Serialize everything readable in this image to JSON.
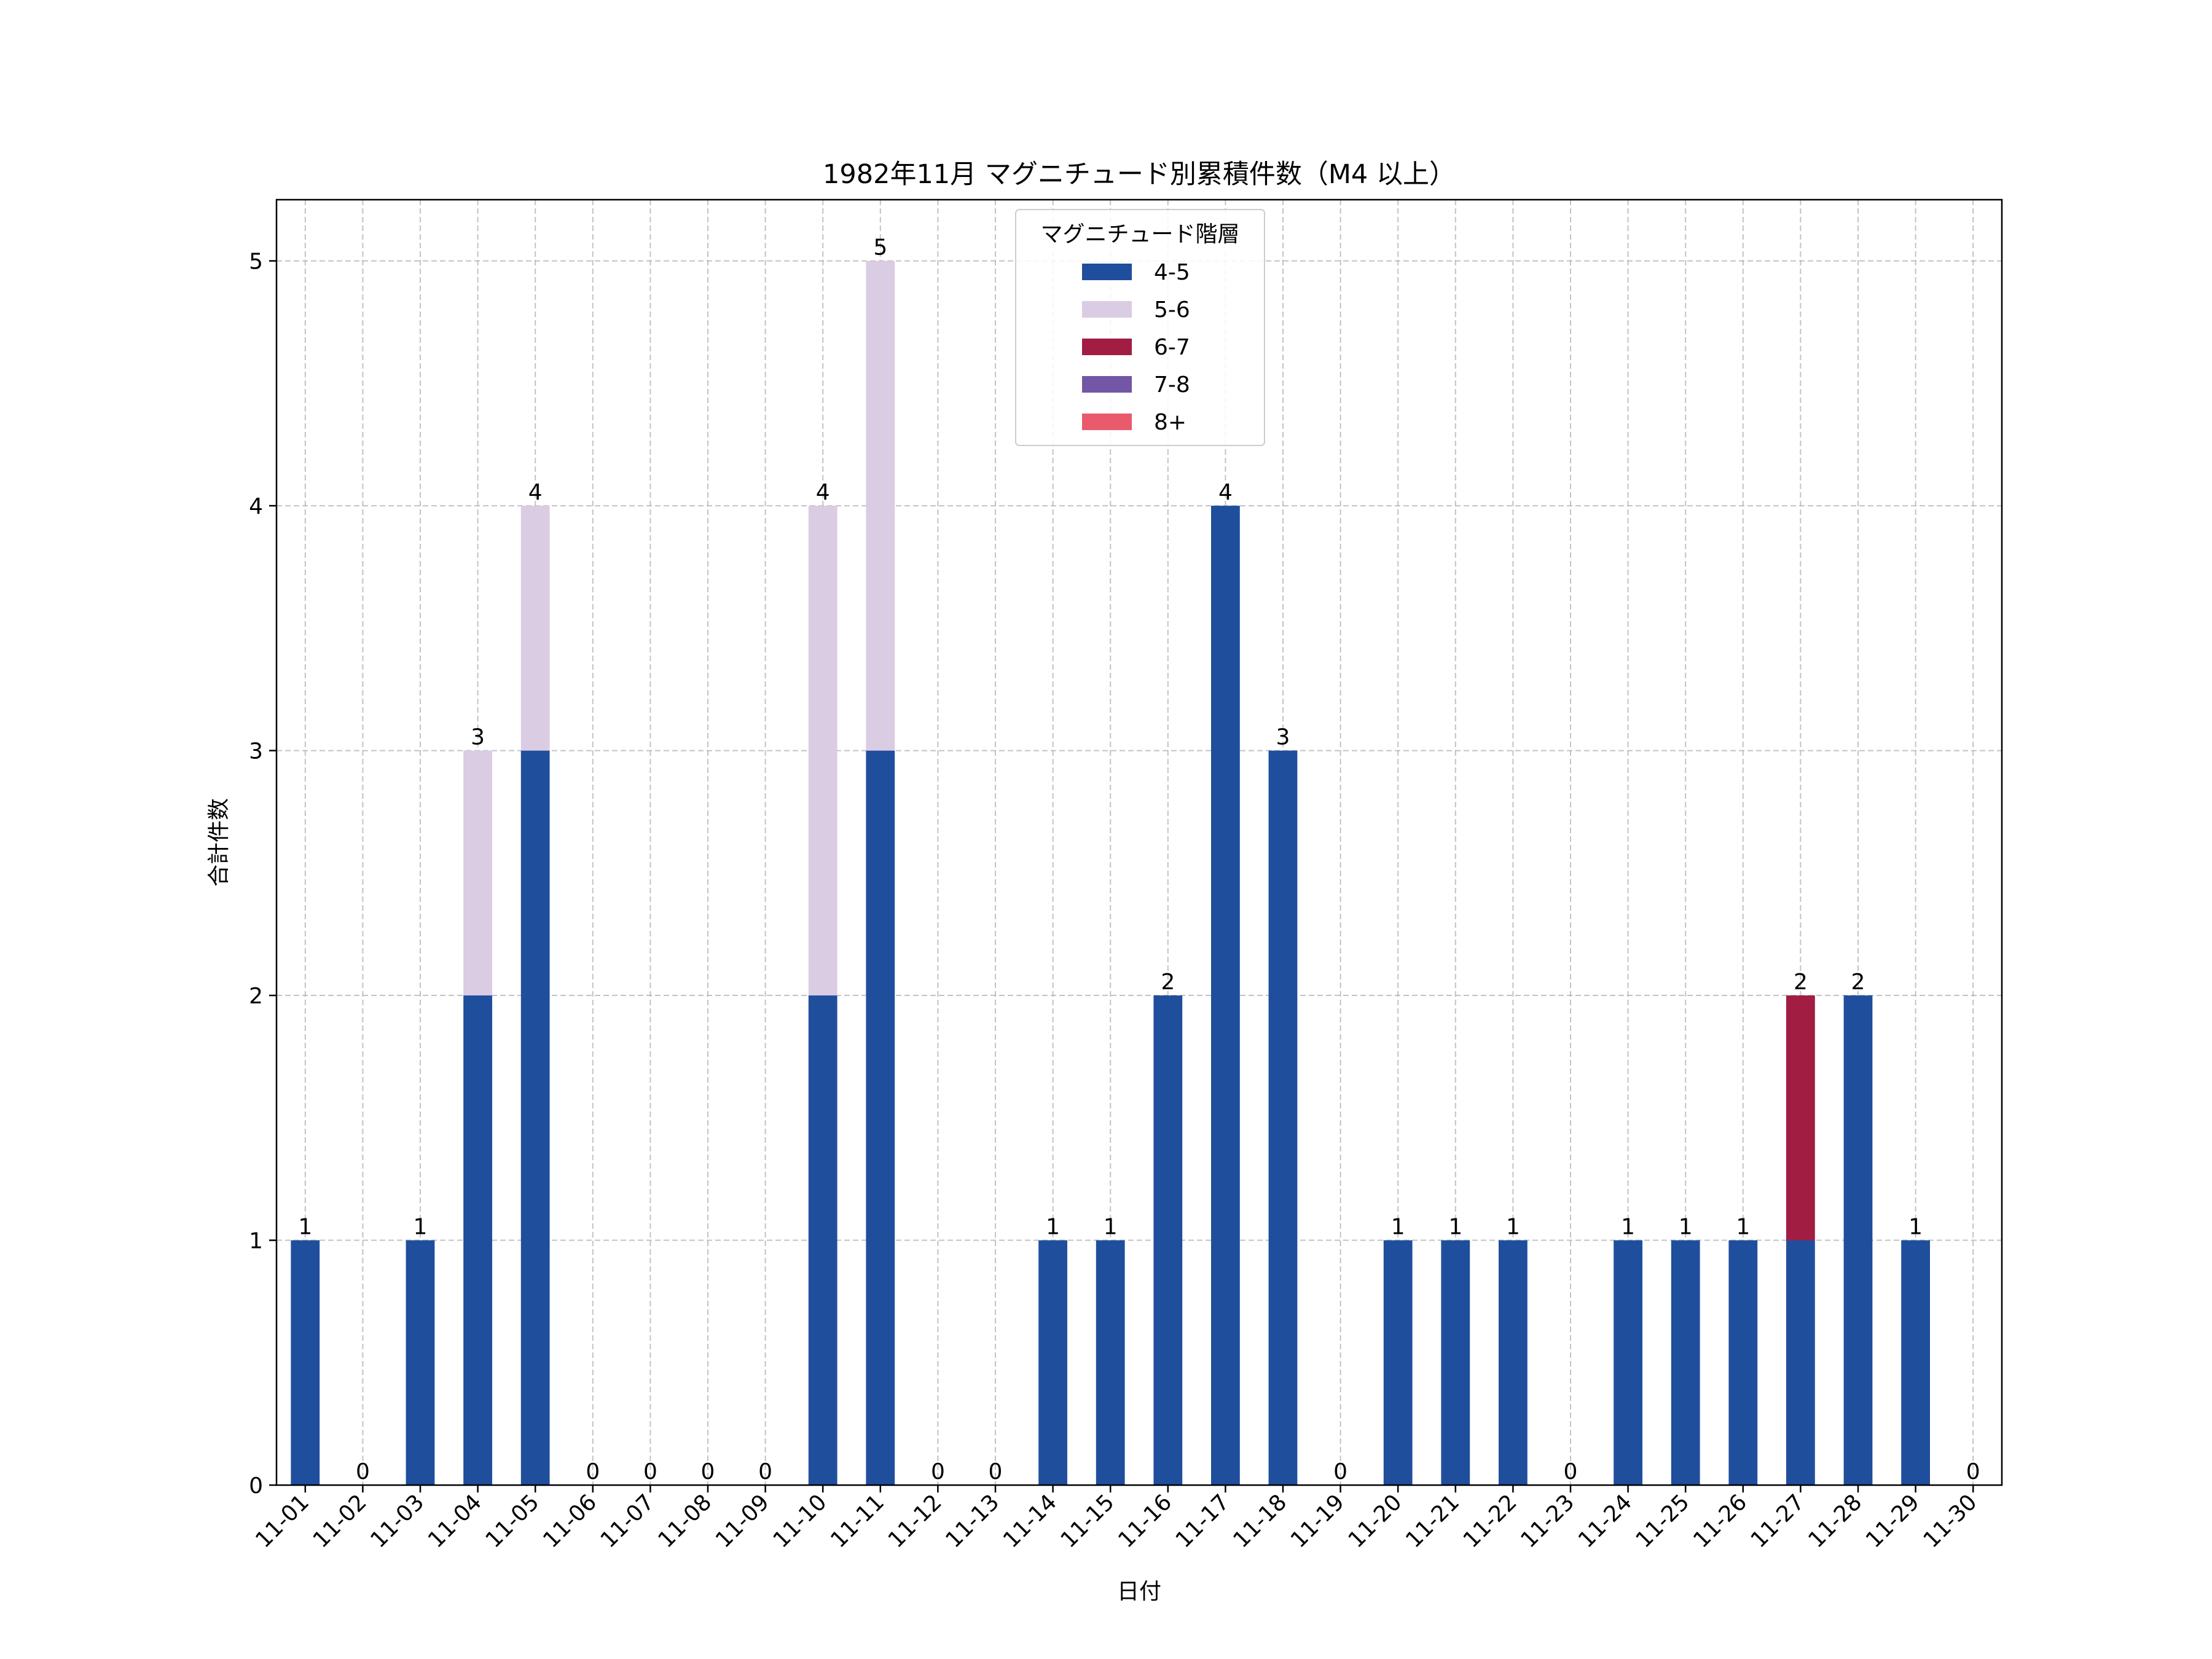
{
  "chart_data": {
    "type": "bar",
    "stacked": true,
    "title": "1982年11月 マグニチュード別累積件数（M4 以上）",
    "xlabel": "日付",
    "ylabel": "合計件数",
    "ylim": [
      0,
      5.25
    ],
    "yticks": [
      0,
      1,
      2,
      3,
      4,
      5
    ],
    "grid": true,
    "legend_title": "マグニチュード階層",
    "legend_position": "top-center",
    "categories": [
      "11-01",
      "11-02",
      "11-03",
      "11-04",
      "11-05",
      "11-06",
      "11-07",
      "11-08",
      "11-09",
      "11-10",
      "11-11",
      "11-12",
      "11-13",
      "11-14",
      "11-15",
      "11-16",
      "11-17",
      "11-18",
      "11-19",
      "11-20",
      "11-21",
      "11-22",
      "11-23",
      "11-24",
      "11-25",
      "11-26",
      "11-27",
      "11-28",
      "11-29",
      "11-30"
    ],
    "series": [
      {
        "name": "4-5",
        "color": "#1f4e9c",
        "values": [
          1,
          0,
          1,
          2,
          3,
          0,
          0,
          0,
          0,
          2,
          3,
          0,
          0,
          1,
          1,
          2,
          4,
          3,
          0,
          1,
          1,
          1,
          0,
          1,
          1,
          1,
          1,
          2,
          1,
          0
        ]
      },
      {
        "name": "5-6",
        "color": "#d9cce3",
        "values": [
          0,
          0,
          0,
          1,
          1,
          0,
          0,
          0,
          0,
          2,
          2,
          0,
          0,
          0,
          0,
          0,
          0,
          0,
          0,
          0,
          0,
          0,
          0,
          0,
          0,
          0,
          0,
          0,
          0,
          0
        ]
      },
      {
        "name": "6-7",
        "color": "#a11d42",
        "values": [
          0,
          0,
          0,
          0,
          0,
          0,
          0,
          0,
          0,
          0,
          0,
          0,
          0,
          0,
          0,
          0,
          0,
          0,
          0,
          0,
          0,
          0,
          0,
          0,
          0,
          0,
          1,
          0,
          0,
          0
        ]
      },
      {
        "name": "7-8",
        "color": "#7456a6",
        "values": [
          0,
          0,
          0,
          0,
          0,
          0,
          0,
          0,
          0,
          0,
          0,
          0,
          0,
          0,
          0,
          0,
          0,
          0,
          0,
          0,
          0,
          0,
          0,
          0,
          0,
          0,
          0,
          0,
          0,
          0
        ]
      },
      {
        "name": "8+",
        "color": "#e85a6c",
        "values": [
          0,
          0,
          0,
          0,
          0,
          0,
          0,
          0,
          0,
          0,
          0,
          0,
          0,
          0,
          0,
          0,
          0,
          0,
          0,
          0,
          0,
          0,
          0,
          0,
          0,
          0,
          0,
          0,
          0,
          0
        ]
      }
    ],
    "totals": [
      1,
      0,
      1,
      3,
      4,
      0,
      0,
      0,
      0,
      4,
      5,
      0,
      0,
      1,
      1,
      2,
      4,
      3,
      0,
      1,
      1,
      1,
      0,
      1,
      1,
      1,
      2,
      2,
      1,
      0
    ]
  }
}
